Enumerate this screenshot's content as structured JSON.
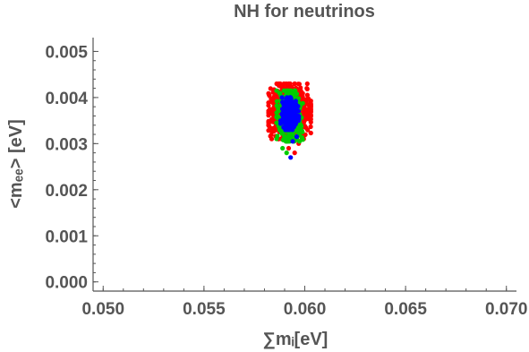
{
  "chart_data": {
    "type": "scatter",
    "title": "NH for neutrinos",
    "xlabel": "∑mᵢ[eV]",
    "ylabel": "<mₑₑ> [eV]",
    "xlim": [
      0.0495,
      0.0705
    ],
    "ylim": [
      -0.0002,
      0.0053
    ],
    "x_ticks": [
      "0.050",
      "0.055",
      "0.060",
      "0.065",
      "0.070"
    ],
    "y_ticks": [
      "0.000",
      "0.001",
      "0.002",
      "0.003",
      "0.004",
      "0.005"
    ],
    "grid": false,
    "series": [
      {
        "color": "#ff0000",
        "cluster": {
          "x_range": [
            0.0583,
            0.0604
          ],
          "y_range": [
            0.0032,
            0.0044
          ],
          "center": [
            0.05925,
            0.0037
          ]
        },
        "outliers": [
          [
            0.0592,
            0.0029
          ],
          [
            0.0595,
            0.0028
          ],
          [
            0.0589,
            0.0031
          ],
          [
            0.0597,
            0.003
          ],
          [
            0.0601,
            0.0042
          ],
          [
            0.0586,
            0.0041
          ]
        ]
      },
      {
        "color": "#00cc00",
        "cluster": {
          "x_range": [
            0.0586,
            0.0599
          ],
          "y_range": [
            0.003,
            0.0041
          ],
          "center": [
            0.05925,
            0.0036
          ]
        },
        "outliers": [
          [
            0.0591,
            0.0028
          ],
          [
            0.0589,
            0.0029
          ],
          [
            0.0596,
            0.0031
          ]
        ]
      },
      {
        "color": "#0000ff",
        "cluster": {
          "x_range": [
            0.0588,
            0.0597
          ],
          "y_range": [
            0.0033,
            0.004
          ],
          "center": [
            0.05925,
            0.00365
          ]
        },
        "outliers": [
          [
            0.0594,
            0.00305
          ],
          [
            0.0596,
            0.00315
          ],
          [
            0.0593,
            0.0027
          ]
        ]
      }
    ]
  }
}
